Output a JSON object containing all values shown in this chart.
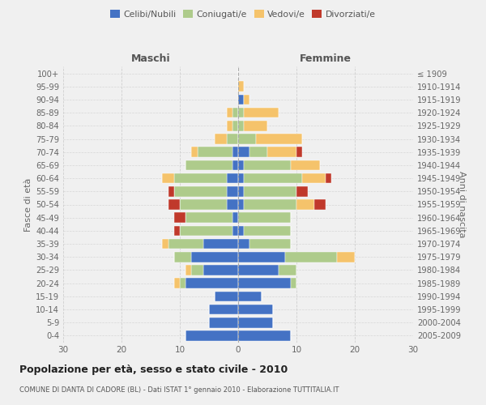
{
  "age_groups": [
    "0-4",
    "5-9",
    "10-14",
    "15-19",
    "20-24",
    "25-29",
    "30-34",
    "35-39",
    "40-44",
    "45-49",
    "50-54",
    "55-59",
    "60-64",
    "65-69",
    "70-74",
    "75-79",
    "80-84",
    "85-89",
    "90-94",
    "95-99",
    "100+"
  ],
  "birth_years": [
    "2005-2009",
    "2000-2004",
    "1995-1999",
    "1990-1994",
    "1985-1989",
    "1980-1984",
    "1975-1979",
    "1970-1974",
    "1965-1969",
    "1960-1964",
    "1955-1959",
    "1950-1954",
    "1945-1949",
    "1940-1944",
    "1935-1939",
    "1930-1934",
    "1925-1929",
    "1920-1924",
    "1915-1919",
    "1910-1914",
    "≤ 1909"
  ],
  "maschi": {
    "celibi": [
      9,
      5,
      5,
      4,
      9,
      6,
      8,
      6,
      1,
      1,
      2,
      2,
      2,
      1,
      1,
      0,
      0,
      0,
      0,
      0,
      0
    ],
    "coniugati": [
      0,
      0,
      0,
      0,
      1,
      2,
      3,
      6,
      9,
      8,
      8,
      9,
      9,
      8,
      6,
      2,
      1,
      1,
      0,
      0,
      0
    ],
    "vedovi": [
      0,
      0,
      0,
      0,
      1,
      1,
      0,
      1,
      0,
      0,
      0,
      0,
      2,
      0,
      1,
      2,
      1,
      1,
      0,
      0,
      0
    ],
    "divorziati": [
      0,
      0,
      0,
      0,
      0,
      0,
      0,
      0,
      1,
      2,
      2,
      1,
      0,
      0,
      0,
      0,
      0,
      0,
      0,
      0,
      0
    ]
  },
  "femmine": {
    "nubili": [
      9,
      6,
      6,
      4,
      9,
      7,
      8,
      2,
      1,
      0,
      1,
      1,
      1,
      1,
      2,
      0,
      0,
      0,
      1,
      0,
      0
    ],
    "coniugate": [
      0,
      0,
      0,
      0,
      1,
      3,
      9,
      7,
      8,
      9,
      9,
      9,
      10,
      8,
      3,
      3,
      1,
      1,
      0,
      0,
      0
    ],
    "vedove": [
      0,
      0,
      0,
      0,
      0,
      0,
      3,
      0,
      0,
      0,
      3,
      0,
      4,
      5,
      5,
      8,
      4,
      6,
      1,
      1,
      0
    ],
    "divorziate": [
      0,
      0,
      0,
      0,
      0,
      0,
      0,
      0,
      0,
      0,
      2,
      2,
      1,
      0,
      1,
      0,
      0,
      0,
      0,
      0,
      0
    ]
  },
  "colors": {
    "celibi_nubili": "#4472C4",
    "coniugati": "#AECB8B",
    "vedovi": "#F5C36B",
    "divorziati": "#C0392B"
  },
  "title": "Popolazione per età, sesso e stato civile - 2010",
  "subtitle": "COMUNE DI DANTA DI CADORE (BL) - Dati ISTAT 1° gennaio 2010 - Elaborazione TUTTITALIA.IT",
  "xlabel_left": "Maschi",
  "xlabel_right": "Femmine",
  "ylabel_left": "Fasce di età",
  "ylabel_right": "Anni di nascita",
  "xlim": 30,
  "bg_color": "#f0f0f0",
  "grid_color": "#cccccc"
}
